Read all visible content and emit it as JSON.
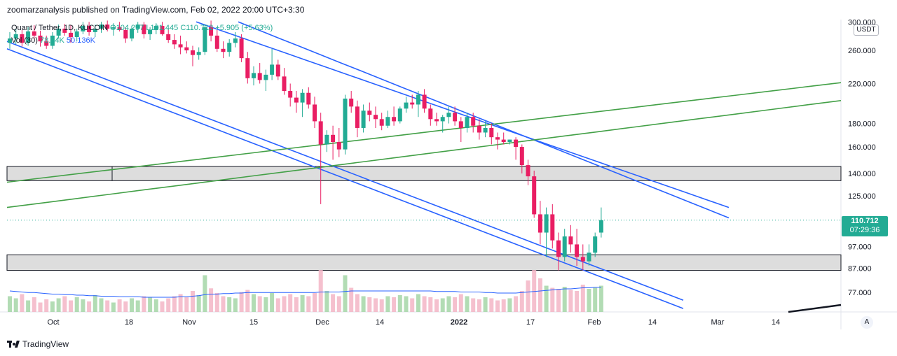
{
  "header": {
    "publisher": "zoomarzanalysis published on TradingView.com, Feb 02, 2022 20:00 UTC+3:30"
  },
  "legend": {
    "symbol_line": "Quant / Tether, 1D, KUCOIN",
    "ohlc": "O104.297 L101.445 C110.712 +5.905 (+5.63%)",
    "volume_label": "Vol (30)",
    "volume_value": "78.34K",
    "volume_ma": "50.136K"
  },
  "price_axis": {
    "currency": "USDT",
    "ticks": [
      "300.000",
      "260.000",
      "220.000",
      "180.000",
      "160.000",
      "140.000",
      "125.000",
      "97.000",
      "87.000",
      "77.000"
    ]
  },
  "time_axis": {
    "ticks": [
      "Oct",
      "18",
      "Nov",
      "15",
      "Dec",
      "14",
      "2022",
      "17",
      "Feb",
      "14",
      "Mar",
      "14"
    ]
  },
  "last_price": {
    "price": "110.712",
    "countdown": "07:29:36"
  },
  "footer": {
    "brand": "TradingView"
  },
  "auto_button": "A",
  "colors": {
    "up": "#22ab94",
    "down": "#e91e63",
    "channel": "#2962ff",
    "trendline": "#43a047",
    "zone": "#d1d1d1"
  },
  "chart_data": {
    "type": "candlestick",
    "symbol": "Quant / Tether",
    "interval": "1D",
    "exchange": "KUCOIN",
    "ylim": [
      72,
      305
    ],
    "y_scale": "log",
    "ohlc": [
      [
        270,
        285,
        262,
        276
      ],
      [
        276,
        290,
        268,
        282
      ],
      [
        282,
        288,
        265,
        270
      ],
      [
        270,
        292,
        266,
        286
      ],
      [
        286,
        295,
        275,
        280
      ],
      [
        280,
        287,
        265,
        272
      ],
      [
        272,
        280,
        262,
        266
      ],
      [
        266,
        285,
        262,
        280
      ],
      [
        280,
        296,
        276,
        290
      ],
      [
        290,
        297,
        280,
        284
      ],
      [
        284,
        295,
        270,
        278
      ],
      [
        278,
        290,
        272,
        286
      ],
      [
        286,
        300,
        282,
        294
      ],
      [
        294,
        300,
        280,
        285
      ],
      [
        285,
        296,
        278,
        290
      ],
      [
        290,
        300,
        284,
        296
      ],
      [
        296,
        302,
        286,
        290
      ],
      [
        290,
        298,
        280,
        292
      ],
      [
        292,
        300,
        286,
        288
      ],
      [
        288,
        292,
        270,
        276
      ],
      [
        276,
        294,
        272,
        290
      ],
      [
        290,
        300,
        284,
        296
      ],
      [
        296,
        300,
        276,
        282
      ],
      [
        282,
        292,
        274,
        288
      ],
      [
        288,
        298,
        282,
        294
      ],
      [
        294,
        300,
        280,
        282
      ],
      [
        282,
        290,
        270,
        274
      ],
      [
        274,
        282,
        262,
        268
      ],
      [
        268,
        280,
        255,
        264
      ],
      [
        264,
        272,
        256,
        260
      ],
      [
        260,
        266,
        240,
        254
      ],
      [
        254,
        264,
        248,
        258
      ],
      [
        258,
        296,
        254,
        292
      ],
      [
        292,
        302,
        272,
        280
      ],
      [
        280,
        288,
        258,
        262
      ],
      [
        262,
        272,
        250,
        258
      ],
      [
        258,
        275,
        252,
        270
      ],
      [
        270,
        285,
        264,
        276
      ],
      [
        276,
        282,
        245,
        250
      ],
      [
        250,
        258,
        220,
        226
      ],
      [
        226,
        240,
        218,
        232
      ],
      [
        232,
        244,
        220,
        224
      ],
      [
        224,
        236,
        212,
        230
      ],
      [
        230,
        262,
        224,
        242
      ],
      [
        242,
        248,
        224,
        228
      ],
      [
        228,
        238,
        208,
        212
      ],
      [
        212,
        220,
        196,
        205
      ],
      [
        205,
        212,
        190,
        200
      ],
      [
        200,
        214,
        186,
        210
      ],
      [
        210,
        216,
        194,
        198
      ],
      [
        198,
        206,
        176,
        182
      ],
      [
        182,
        190,
        120,
        162
      ],
      [
        162,
        174,
        156,
        170
      ],
      [
        170,
        178,
        150,
        164
      ],
      [
        164,
        176,
        152,
        158
      ],
      [
        158,
        208,
        154,
        204
      ],
      [
        204,
        212,
        190,
        196
      ],
      [
        196,
        202,
        168,
        176
      ],
      [
        176,
        198,
        172,
        192
      ],
      [
        192,
        200,
        182,
        188
      ],
      [
        188,
        196,
        176,
        184
      ],
      [
        184,
        190,
        174,
        178
      ],
      [
        178,
        192,
        176,
        186
      ],
      [
        186,
        196,
        178,
        182
      ],
      [
        182,
        196,
        180,
        194
      ],
      [
        194,
        206,
        190,
        200
      ],
      [
        200,
        208,
        194,
        198
      ],
      [
        198,
        212,
        186,
        208
      ],
      [
        208,
        214,
        190,
        194
      ],
      [
        194,
        198,
        178,
        184
      ],
      [
        184,
        190,
        178,
        182
      ],
      [
        182,
        188,
        172,
        186
      ],
      [
        186,
        196,
        180,
        190
      ],
      [
        190,
        196,
        178,
        182
      ],
      [
        182,
        186,
        164,
        176
      ],
      [
        176,
        190,
        172,
        186
      ],
      [
        186,
        190,
        172,
        178
      ],
      [
        178,
        184,
        166,
        172
      ],
      [
        172,
        182,
        168,
        176
      ],
      [
        176,
        180,
        162,
        168
      ],
      [
        168,
        172,
        158,
        166
      ],
      [
        166,
        172,
        162,
        164
      ],
      [
        164,
        166,
        162,
        166
      ],
      [
        166,
        168,
        150,
        160
      ],
      [
        160,
        162,
        140,
        146
      ],
      [
        146,
        150,
        132,
        138
      ],
      [
        138,
        142,
        112,
        114
      ],
      [
        114,
        122,
        98,
        104
      ],
      [
        104,
        118,
        92,
        114
      ],
      [
        114,
        120,
        96,
        100
      ],
      [
        100,
        104,
        86,
        92
      ],
      [
        92,
        106,
        90,
        102
      ],
      [
        102,
        108,
        94,
        98
      ],
      [
        98,
        106,
        88,
        92
      ],
      [
        92,
        98,
        86,
        90
      ],
      [
        90,
        98,
        88,
        94
      ],
      [
        94,
        104,
        92,
        102
      ],
      [
        104,
        118,
        101.445,
        110.712
      ]
    ],
    "volume": [
      30,
      26,
      34,
      22,
      28,
      18,
      24,
      20,
      26,
      30,
      22,
      28,
      24,
      20,
      32,
      26,
      22,
      18,
      24,
      20,
      26,
      22,
      30,
      28,
      24,
      20,
      26,
      30,
      34,
      28,
      40,
      32,
      70,
      45,
      36,
      30,
      28,
      26,
      38,
      42,
      34,
      30,
      28,
      36,
      26,
      30,
      34,
      28,
      32,
      30,
      36,
      80,
      40,
      34,
      30,
      70,
      46,
      34,
      30,
      28,
      26,
      24,
      30,
      28,
      32,
      30,
      26,
      34,
      30,
      28,
      24,
      26,
      30,
      28,
      34,
      30,
      26,
      24,
      28,
      26,
      22,
      24,
      26,
      30,
      40,
      60,
      80,
      64,
      50,
      46,
      44,
      48,
      42,
      40,
      52,
      44,
      46,
      50
    ],
    "volume_ma": [
      40,
      39,
      38,
      37,
      37,
      36,
      35,
      34,
      34,
      33,
      33,
      32,
      32,
      31,
      31,
      30,
      30,
      30,
      29,
      29,
      29,
      29,
      28,
      28,
      28,
      28,
      28,
      28,
      29,
      29,
      30,
      31,
      33,
      34,
      34,
      35,
      35,
      36,
      36,
      37,
      37,
      37,
      37,
      37,
      37,
      37,
      37,
      37,
      37,
      37,
      37,
      38,
      38,
      38,
      38,
      39,
      40,
      40,
      40,
      40,
      40,
      40,
      40,
      40,
      40,
      40,
      40,
      40,
      40,
      40,
      39,
      39,
      39,
      39,
      38,
      38,
      38,
      38,
      37,
      37,
      36,
      36,
      36,
      36,
      37,
      38,
      39,
      40,
      41,
      42,
      43,
      44,
      44,
      45,
      46,
      46,
      47,
      47
    ],
    "zones": [
      {
        "low": 135,
        "high": 145
      },
      {
        "low": 86,
        "high": 93
      }
    ]
  }
}
